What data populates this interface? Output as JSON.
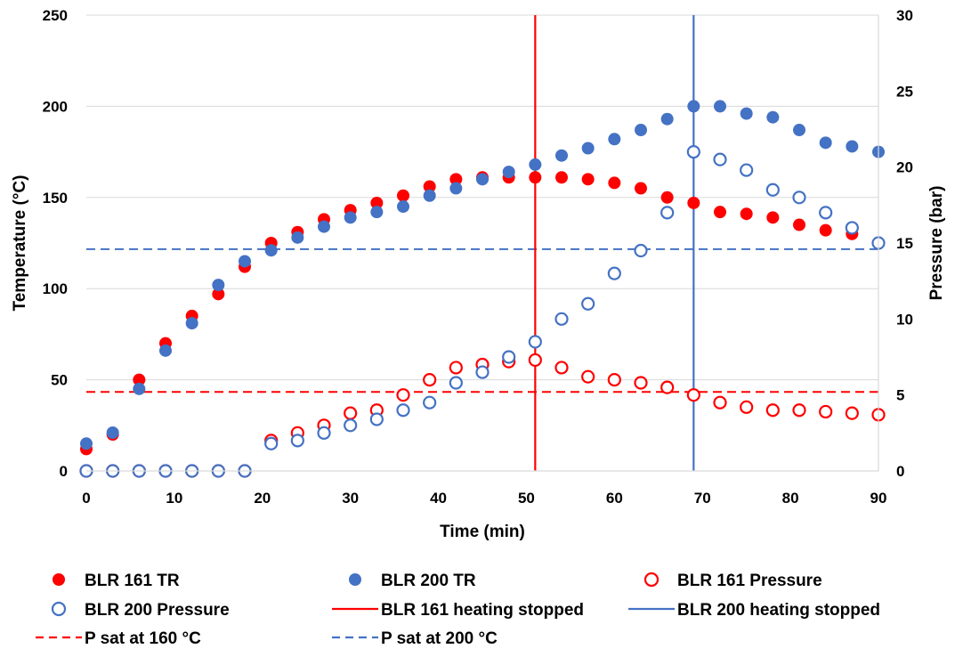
{
  "chart_data": {
    "type": "scatter",
    "xlabel": "Time (min)",
    "ylabel": "Temperature (°C)",
    "y2label": "Pressure (bar)",
    "xlim": [
      0,
      90
    ],
    "ylim": [
      0,
      250
    ],
    "y2lim": [
      0,
      30
    ],
    "xticks": [
      0,
      10,
      20,
      30,
      40,
      50,
      60,
      70,
      80,
      90
    ],
    "yticks": [
      0,
      50,
      100,
      150,
      200,
      250
    ],
    "y2ticks": [
      0,
      5,
      10,
      15,
      20,
      25,
      30
    ],
    "grid": "horizontal",
    "legend_position": "bottom",
    "colors": {
      "red": "#ff0000",
      "blue": "#4472c4"
    },
    "series": [
      {
        "name": "BLR 161 TR",
        "axis": "left",
        "style": "filled-marker",
        "color": "#ff0000",
        "x": [
          0,
          3,
          6,
          9,
          12,
          15,
          18,
          21,
          24,
          27,
          30,
          33,
          36,
          39,
          42,
          45,
          48,
          51,
          54,
          57,
          60,
          63,
          66,
          69,
          72,
          75,
          78,
          81,
          84,
          87,
          90
        ],
        "y": [
          12,
          20,
          50,
          70,
          85,
          97,
          112,
          125,
          131,
          138,
          143,
          147,
          151,
          156,
          160,
          161,
          161,
          161,
          161,
          160,
          158,
          155,
          150,
          147,
          142,
          141,
          139,
          135,
          132,
          130,
          125
        ]
      },
      {
        "name": "BLR 200 TR",
        "axis": "left",
        "style": "filled-marker",
        "color": "#4472c4",
        "x": [
          0,
          3,
          6,
          9,
          12,
          15,
          18,
          21,
          24,
          27,
          30,
          33,
          36,
          39,
          42,
          45,
          48,
          51,
          54,
          57,
          60,
          63,
          66,
          69,
          72,
          75,
          78,
          81,
          84,
          87,
          90
        ],
        "y": [
          15,
          21,
          45,
          66,
          81,
          102,
          115,
          121,
          128,
          134,
          139,
          142,
          145,
          151,
          155,
          160,
          164,
          168,
          173,
          177,
          182,
          187,
          193,
          200,
          200,
          196,
          194,
          187,
          180,
          178,
          175
        ]
      },
      {
        "name": "BLR 161 Pressure",
        "axis": "right",
        "style": "open-marker",
        "color": "#ff0000",
        "x": [
          0,
          3,
          6,
          9,
          12,
          15,
          18,
          21,
          24,
          27,
          30,
          33,
          36,
          39,
          42,
          45,
          48,
          51,
          54,
          57,
          60,
          63,
          66,
          69,
          72,
          75,
          78,
          81,
          84,
          87,
          90
        ],
        "y": [
          0,
          0,
          0,
          0,
          0,
          0,
          0,
          2,
          2.5,
          3,
          3.8,
          4,
          5,
          6,
          6.8,
          7,
          7.2,
          7.3,
          6.8,
          6.2,
          6,
          5.8,
          5.5,
          5,
          4.5,
          4.2,
          4,
          4,
          3.9,
          3.8,
          3.7
        ]
      },
      {
        "name": "BLR 200 Pressure",
        "axis": "right",
        "style": "open-marker",
        "color": "#4472c4",
        "x": [
          0,
          3,
          6,
          9,
          12,
          15,
          18,
          21,
          24,
          27,
          30,
          33,
          36,
          39,
          42,
          45,
          48,
          51,
          54,
          57,
          60,
          63,
          66,
          69,
          72,
          75,
          78,
          81,
          84,
          87,
          90
        ],
        "y": [
          0,
          0,
          0,
          0,
          0,
          0,
          0,
          1.8,
          2,
          2.5,
          3,
          3.4,
          4,
          4.5,
          5.8,
          6.5,
          7.5,
          8.5,
          10,
          11,
          13,
          14.5,
          17,
          21,
          20.5,
          19.8,
          18.5,
          18,
          17,
          16,
          15
        ]
      }
    ],
    "vlines": [
      {
        "name": "BLR 161 heating stopped",
        "x": 51,
        "color": "#ff0000"
      },
      {
        "name": "BLR 200 heating stopped",
        "x": 69,
        "color": "#4472c4"
      }
    ],
    "hlines": [
      {
        "name": "P sat at 160 °C",
        "axis": "right",
        "y": 5.2,
        "color": "#ff0000",
        "style": "dashed"
      },
      {
        "name": "P sat at 200 °C",
        "axis": "right",
        "y": 14.6,
        "color": "#4472c4",
        "style": "dashed"
      }
    ],
    "legend": [
      {
        "label": "BLR 161 TR",
        "kind": "filled-marker",
        "color": "#ff0000"
      },
      {
        "label": "BLR 200 TR",
        "kind": "filled-marker",
        "color": "#4472c4"
      },
      {
        "label": "BLR 161 Pressure",
        "kind": "open-marker",
        "color": "#ff0000"
      },
      {
        "label": "BLR 200 Pressure",
        "kind": "open-marker",
        "color": "#4472c4"
      },
      {
        "label": "BLR 161 heating stopped",
        "kind": "solid-line",
        "color": "#ff0000"
      },
      {
        "label": "BLR 200 heating stopped",
        "kind": "solid-line",
        "color": "#4472c4"
      },
      {
        "label": "P sat at 160 °C",
        "kind": "dashed-line",
        "color": "#ff0000"
      },
      {
        "label": "P sat at 200 °C",
        "kind": "dashed-line",
        "color": "#4472c4"
      }
    ]
  }
}
